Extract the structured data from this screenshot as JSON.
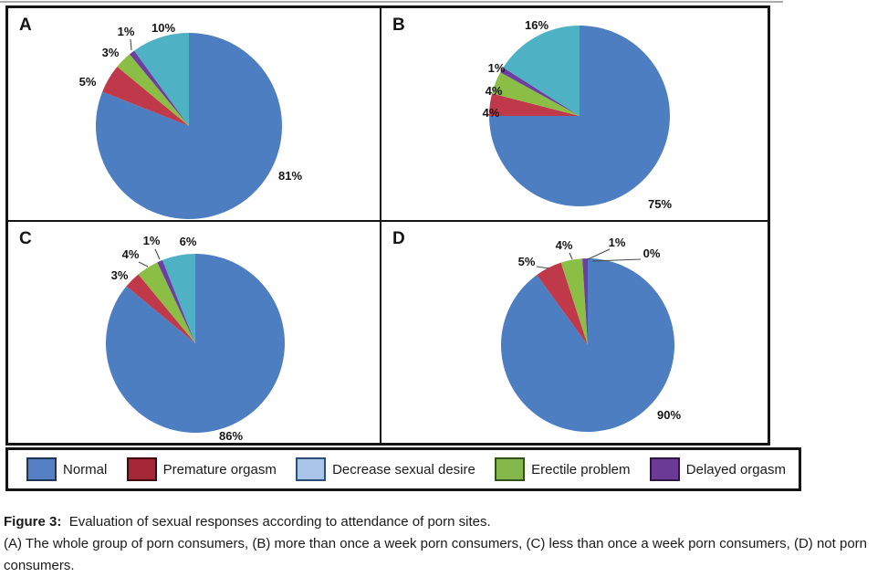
{
  "figure": {
    "panels": [
      {
        "id": "A",
        "letter": "A"
      },
      {
        "id": "B",
        "letter": "B"
      },
      {
        "id": "C",
        "letter": "C"
      },
      {
        "id": "D",
        "letter": "D"
      }
    ]
  },
  "pie_colors": {
    "Normal": "#4D7EC2",
    "Premature orgasm": "#C0394B",
    "Erectile problem": "#8BBE44",
    "Delayed orgasm": "#6C3FA0",
    "Decrease sexual desire": "#4EB1C4"
  },
  "legend": {
    "items": [
      {
        "label": "Normal",
        "fill": "#5580C6",
        "border": "#1F3554"
      },
      {
        "label": "Premature orgasm",
        "fill": "#A32734",
        "border": "#42070E"
      },
      {
        "label": "Decrease sexual desire",
        "fill": "#A9C5E8",
        "border": "#2C4E75"
      },
      {
        "label": "Erectile problem",
        "fill": "#85B84B",
        "border": "#33511C"
      },
      {
        "label": "Delayed orgasm",
        "fill": "#6A3A96",
        "border": "#2E1745"
      }
    ]
  },
  "caption": {
    "title": "Figure 3:",
    "text": "Evaluation of sexual responses according to attendance of porn sites.",
    "detail": "(A) The whole group of porn consumers, (B) more than once a week porn consumers, (C) less than once a week porn consumers, (D) not porn consumers."
  },
  "chart_data": [
    {
      "type": "pie",
      "panel": "A",
      "group": "The whole group of porn consumers",
      "value_unit": "%",
      "slice_order": "clockwise-from-top",
      "slices": [
        {
          "label": "Normal",
          "value": 81
        },
        {
          "label": "Premature orgasm",
          "value": 5
        },
        {
          "label": "Erectile problem",
          "value": 3
        },
        {
          "label": "Delayed orgasm",
          "value": 1
        },
        {
          "label": "Decrease sexual desire",
          "value": 10
        }
      ]
    },
    {
      "type": "pie",
      "panel": "B",
      "group": "More than once a week porn consumers",
      "value_unit": "%",
      "slice_order": "clockwise-from-top",
      "slices": [
        {
          "label": "Normal",
          "value": 75
        },
        {
          "label": "Premature orgasm",
          "value": 4
        },
        {
          "label": "Erectile problem",
          "value": 4
        },
        {
          "label": "Delayed orgasm",
          "value": 1
        },
        {
          "label": "Decrease sexual desire",
          "value": 16
        }
      ]
    },
    {
      "type": "pie",
      "panel": "C",
      "group": "Less than once a week porn consumers",
      "value_unit": "%",
      "slice_order": "clockwise-from-top",
      "slices": [
        {
          "label": "Normal",
          "value": 86
        },
        {
          "label": "Premature orgasm",
          "value": 3
        },
        {
          "label": "Erectile problem",
          "value": 4
        },
        {
          "label": "Delayed orgasm",
          "value": 1
        },
        {
          "label": "Decrease sexual desire",
          "value": 6
        }
      ]
    },
    {
      "type": "pie",
      "panel": "D",
      "group": "Not porn consumers",
      "value_unit": "%",
      "slice_order": "clockwise-from-top",
      "slices": [
        {
          "label": "Normal",
          "value": 90
        },
        {
          "label": "Premature orgasm",
          "value": 5
        },
        {
          "label": "Erectile problem",
          "value": 4
        },
        {
          "label": "Delayed orgasm",
          "value": 1
        },
        {
          "label": "Decrease sexual desire",
          "value": 0
        }
      ]
    }
  ]
}
